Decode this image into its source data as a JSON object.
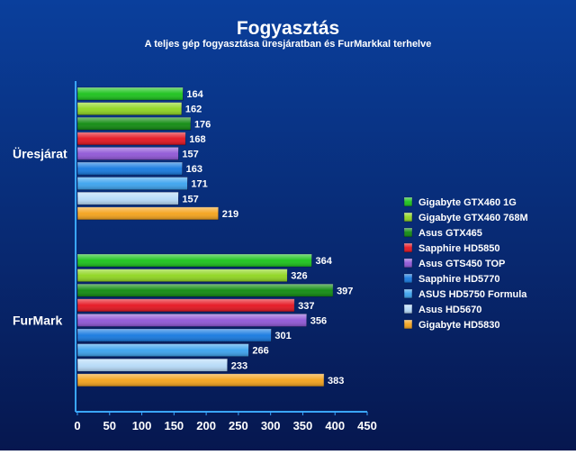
{
  "chart_data": {
    "type": "bar",
    "orientation": "horizontal",
    "title": "Fogyasztás",
    "subtitle": "A teljes gép fogyasztása üresjáratban és FurMarkkal terhelve",
    "categories": [
      "Üresjárat",
      "FurMark"
    ],
    "xlim": [
      0,
      450
    ],
    "xticks": [
      "0",
      "50",
      "100",
      "150",
      "200",
      "250",
      "300",
      "350",
      "400",
      "450"
    ],
    "grid": false,
    "legend_position": "right",
    "series": [
      {
        "name": "Gigabyte GTX460 1G",
        "values": [
          164,
          364
        ],
        "color": "#19c219"
      },
      {
        "name": "Gigabyte GTX460 768M",
        "values": [
          162,
          326
        ],
        "color": "#8ed51e"
      },
      {
        "name": "Asus GTX465",
        "values": [
          176,
          397
        ],
        "color": "#0e8a0e"
      },
      {
        "name": "Sapphire HD5850",
        "values": [
          168,
          337
        ],
        "color": "#e5121e"
      },
      {
        "name": "Asus GTS450 TOP",
        "values": [
          157,
          356
        ],
        "color": "#8f55d6"
      },
      {
        "name": "Sapphire HD5770",
        "values": [
          163,
          301
        ],
        "color": "#1478e0"
      },
      {
        "name": "ASUS HD5750 Formula",
        "values": [
          171,
          266
        ],
        "color": "#3aa2ee"
      },
      {
        "name": "Asus HD5670",
        "values": [
          157,
          233
        ],
        "color": "#b6daf8"
      },
      {
        "name": "Gigabyte HD5830",
        "values": [
          219,
          383
        ],
        "color": "#f4a21a"
      }
    ]
  }
}
